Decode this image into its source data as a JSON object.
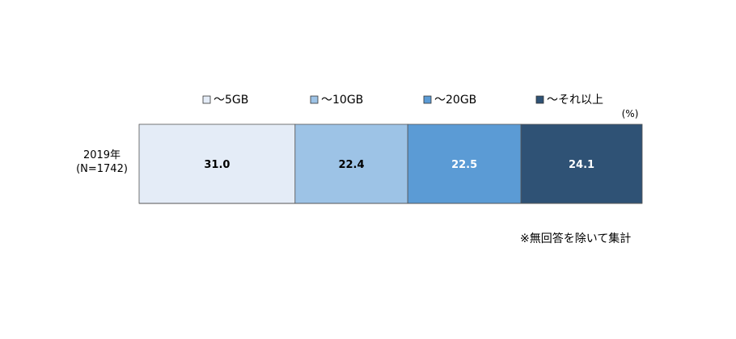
{
  "chart_data": {
    "type": "bar",
    "orientation": "horizontal",
    "stacked": true,
    "unit_label": "(%)",
    "categories": [
      "2019年\n(N=1742)"
    ],
    "series": [
      {
        "name": "～5GB",
        "values": [
          31.0
        ],
        "value_label": "31.0",
        "color": "#E4ECF7",
        "label_color": "#000000"
      },
      {
        "name": "～10GB",
        "values": [
          22.4
        ],
        "value_label": "22.4",
        "color": "#9DC3E6",
        "label_color": "#000000"
      },
      {
        "name": "～20GB",
        "values": [
          22.5
        ],
        "value_label": "22.5",
        "color": "#5B9BD5",
        "label_color": "#ffffff"
      },
      {
        "name": "～それ以上",
        "values": [
          24.1
        ],
        "value_label": "24.1",
        "color": "#2F5275",
        "label_color": "#ffffff"
      }
    ],
    "xlim": [
      0,
      100
    ],
    "grid": false,
    "legend_position": "top",
    "note": "※無回答を除いて集計"
  }
}
